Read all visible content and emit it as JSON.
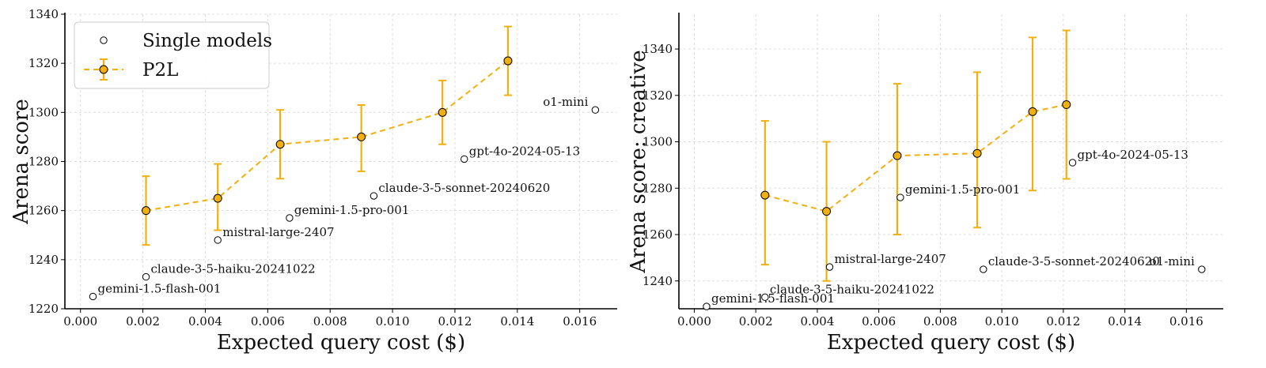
{
  "colors": {
    "p2l": "#F2B010",
    "marker_edge": "#000000",
    "grid": "#dddddd"
  },
  "legend": {
    "placement": "upper-left",
    "single_models": "Single models",
    "p2l": "P2L"
  },
  "chart_data": [
    {
      "type": "scatter",
      "xlabel": "Expected query cost ($)",
      "ylabel": "Arena score",
      "xlim": [
        -0.0005,
        0.0172
      ],
      "ylim": [
        1220,
        1340
      ],
      "xticks": [
        "0.000",
        "0.002",
        "0.004",
        "0.006",
        "0.008",
        "0.010",
        "0.012",
        "0.014",
        "0.016"
      ],
      "yticks": [
        "1220",
        "1240",
        "1260",
        "1280",
        "1300",
        "1320",
        "1340"
      ],
      "grid": true,
      "legend": "upper-left",
      "single_models": [
        {
          "name": "gemini-1.5-flash-001",
          "x": 0.0004,
          "y": 1225
        },
        {
          "name": "claude-3-5-haiku-20241022",
          "x": 0.0021,
          "y": 1233
        },
        {
          "name": "mistral-large-2407",
          "x": 0.0044,
          "y": 1248
        },
        {
          "name": "gemini-1.5-pro-001",
          "x": 0.0067,
          "y": 1257
        },
        {
          "name": "claude-3-5-sonnet-20240620",
          "x": 0.0094,
          "y": 1266
        },
        {
          "name": "gpt-4o-2024-05-13",
          "x": 0.0123,
          "y": 1281
        },
        {
          "name": "o1-mini",
          "x": 0.0165,
          "y": 1301
        }
      ],
      "p2l": [
        {
          "x": 0.0021,
          "y": 1260,
          "lo": 1246,
          "hi": 1274
        },
        {
          "x": 0.0044,
          "y": 1265,
          "lo": 1252,
          "hi": 1279
        },
        {
          "x": 0.0064,
          "y": 1287,
          "lo": 1273,
          "hi": 1301
        },
        {
          "x": 0.009,
          "y": 1290,
          "lo": 1276,
          "hi": 1303
        },
        {
          "x": 0.0116,
          "y": 1300,
          "lo": 1287,
          "hi": 1313
        },
        {
          "x": 0.0137,
          "y": 1321,
          "lo": 1307,
          "hi": 1335
        }
      ]
    },
    {
      "type": "scatter",
      "xlabel": "Expected query cost ($)",
      "ylabel": "Arena score: creative",
      "xlim": [
        -0.0005,
        0.0172
      ],
      "ylim": [
        1228,
        1355
      ],
      "xticks": [
        "0.000",
        "0.002",
        "0.004",
        "0.006",
        "0.008",
        "0.010",
        "0.012",
        "0.014",
        "0.016"
      ],
      "yticks": [
        "1240",
        "1260",
        "1280",
        "1300",
        "1320",
        "1340"
      ],
      "grid": true,
      "single_models": [
        {
          "name": "gemini-1.5-flash-001",
          "x": 0.0004,
          "y": 1229
        },
        {
          "name": "claude-3-5-haiku-20241022",
          "x": 0.0023,
          "y": 1233
        },
        {
          "name": "mistral-large-2407",
          "x": 0.0044,
          "y": 1246
        },
        {
          "name": "gemini-1.5-pro-001",
          "x": 0.0067,
          "y": 1276
        },
        {
          "name": "claude-3-5-sonnet-20240620",
          "x": 0.0094,
          "y": 1245
        },
        {
          "name": "gpt-4o-2024-05-13",
          "x": 0.0123,
          "y": 1291
        },
        {
          "name": "o1-mini",
          "x": 0.0165,
          "y": 1245
        }
      ],
      "p2l": [
        {
          "x": 0.0023,
          "y": 1277,
          "lo": 1247,
          "hi": 1309
        },
        {
          "x": 0.0043,
          "y": 1270,
          "lo": 1240,
          "hi": 1300
        },
        {
          "x": 0.0066,
          "y": 1294,
          "lo": 1260,
          "hi": 1325
        },
        {
          "x": 0.0092,
          "y": 1295,
          "lo": 1263,
          "hi": 1330
        },
        {
          "x": 0.011,
          "y": 1313,
          "lo": 1279,
          "hi": 1345
        },
        {
          "x": 0.0121,
          "y": 1316,
          "lo": 1284,
          "hi": 1348
        }
      ]
    }
  ]
}
